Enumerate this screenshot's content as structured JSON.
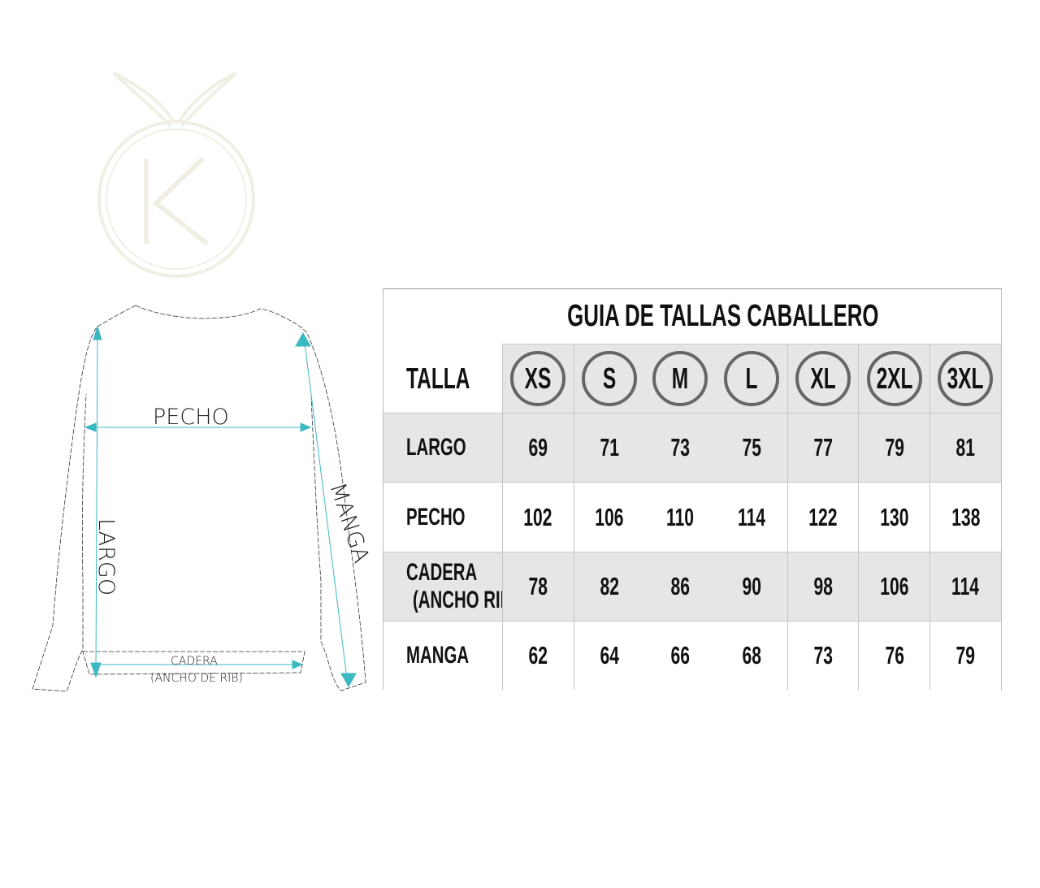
{
  "logo": {
    "letter": "K",
    "description_text": ""
  },
  "diagram": {
    "labels": {
      "pecho": "PECHO",
      "largo": "LARGO",
      "manga": "MANGA",
      "cadera": "CADERA",
      "cadera_sub": "(ANCHO DE RIB)"
    },
    "accent_color": "#3bb8c2"
  },
  "table": {
    "title": "GUIA DE TALLAS CABALLERO",
    "header_label": "TALLA",
    "sizes": [
      "XS",
      "S",
      "M",
      "L",
      "XL",
      "2XL",
      "3XL"
    ],
    "rows": [
      {
        "label": "LARGO",
        "sublabel": "",
        "values": [
          "69",
          "71",
          "73",
          "75",
          "77",
          "79",
          "81"
        ],
        "shaded": true
      },
      {
        "label": "PECHO",
        "sublabel": "",
        "values": [
          "102",
          "106",
          "110",
          "114",
          "122",
          "130",
          "138"
        ],
        "shaded": false
      },
      {
        "label": "CADERA",
        "sublabel": "(ANCHO RIB)",
        "values": [
          "78",
          "82",
          "86",
          "90",
          "98",
          "106",
          "114"
        ],
        "shaded": true
      },
      {
        "label": "MANGA",
        "sublabel": "",
        "values": [
          "62",
          "64",
          "66",
          "68",
          "73",
          "76",
          "79"
        ],
        "shaded": false
      }
    ],
    "shade_color": "#e6e6e6",
    "circle_color": "#666666"
  }
}
